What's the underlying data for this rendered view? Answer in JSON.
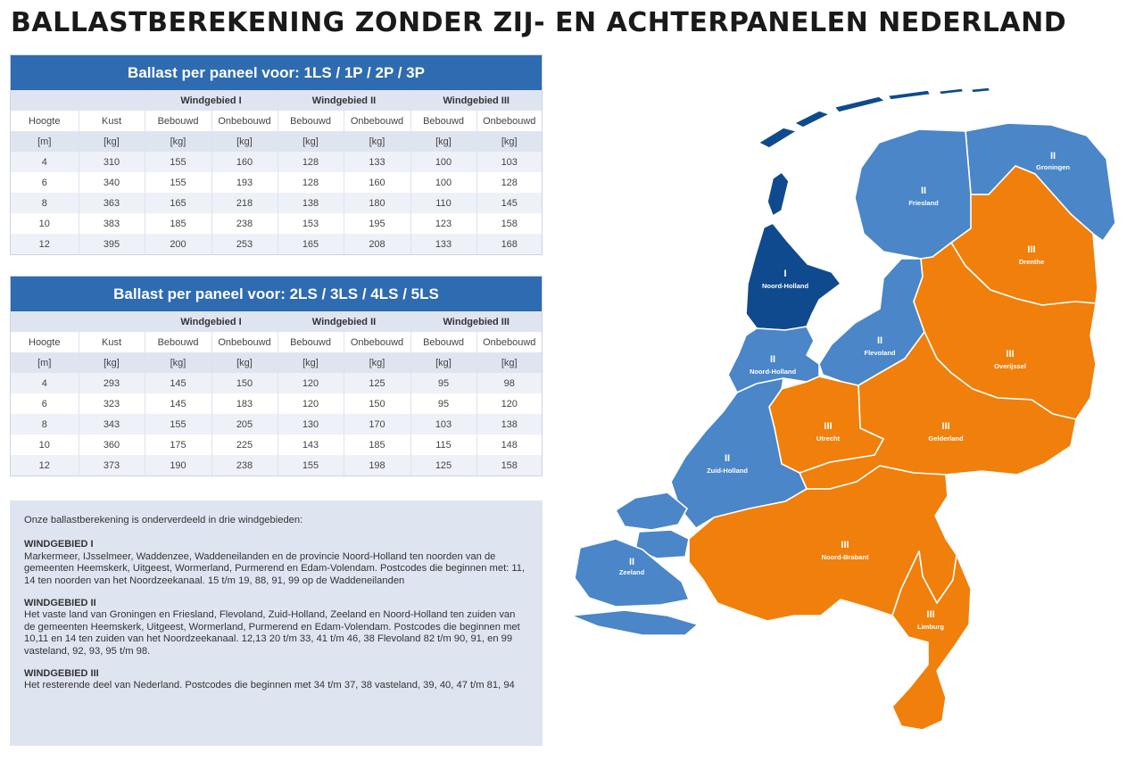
{
  "title": "BALLASTBEREKENING ZONDER ZIJ- EN ACHTERPANELEN NEDERLAND",
  "colors": {
    "zone1": "#0f4a8e",
    "zone2": "#4a86c8",
    "zone3": "#f07f0b",
    "header": "#2e6bb0",
    "tint": "#dfe4f1"
  },
  "tables": [
    {
      "title": "Ballast per paneel voor: 1LS / 1P / 2P / 3P",
      "zones": [
        "Windgebied I",
        "Windgebied II",
        "Windgebied III"
      ],
      "headers": [
        "Hoogte",
        "Kust",
        "Bebouwd",
        "Onbebouwd",
        "Bebouwd",
        "Onbebouwd",
        "Bebouwd",
        "Onbebouwd"
      ],
      "units": [
        "[m]",
        "[kg]",
        "[kg]",
        "[kg]",
        "[kg]",
        "[kg]",
        "[kg]",
        "[kg]"
      ],
      "rows": [
        [
          "4",
          "310",
          "155",
          "160",
          "128",
          "133",
          "100",
          "103"
        ],
        [
          "6",
          "340",
          "155",
          "193",
          "128",
          "160",
          "100",
          "128"
        ],
        [
          "8",
          "363",
          "165",
          "218",
          "138",
          "180",
          "110",
          "145"
        ],
        [
          "10",
          "383",
          "185",
          "238",
          "153",
          "195",
          "123",
          "158"
        ],
        [
          "12",
          "395",
          "200",
          "253",
          "165",
          "208",
          "133",
          "168"
        ]
      ]
    },
    {
      "title": "Ballast per paneel voor: 2LS / 3LS / 4LS / 5LS",
      "zones": [
        "Windgebied I",
        "Windgebied II",
        "Windgebied III"
      ],
      "headers": [
        "Hoogte",
        "Kust",
        "Bebouwd",
        "Onbebouwd",
        "Bebouwd",
        "Onbebouwd",
        "Bebouwd",
        "Onbebouwd"
      ],
      "units": [
        "[m]",
        "[kg]",
        "[kg]",
        "[kg]",
        "[kg]",
        "[kg]",
        "[kg]",
        "[kg]"
      ],
      "rows": [
        [
          "4",
          "293",
          "145",
          "150",
          "120",
          "125",
          "95",
          "98"
        ],
        [
          "6",
          "323",
          "145",
          "183",
          "120",
          "150",
          "95",
          "120"
        ],
        [
          "8",
          "343",
          "155",
          "205",
          "130",
          "170",
          "103",
          "138"
        ],
        [
          "10",
          "360",
          "175",
          "225",
          "143",
          "185",
          "115",
          "148"
        ],
        [
          "12",
          "373",
          "190",
          "238",
          "155",
          "198",
          "125",
          "158"
        ]
      ]
    }
  ],
  "info": {
    "intro": "Onze ballastberekening is onderverdeeld in drie windgebieden:",
    "zone1_head": "WINDGEBIED I",
    "zone1_text": "Markermeer, IJsselmeer, Waddenzee, Waddeneilanden en de provincie Noord-Holland ten noorden van de gemeenten Heemskerk, Uitgeest, Wormerland, Purmerend en Edam-Volendam. Postcodes die beginnen met: 11, 14 ten noorden van het Noordzeekanaal. 15 t/m 19, 88, 91, 99 op de Waddeneilanden",
    "zone2_head": "WINDGEBIED II",
    "zone2_text": "Het vaste land van Groningen en Friesland, Flevoland, Zuid-Holland, Zeeland en Noord-Holland  ten zuiden van de gemeenten Heemskerk, Uitgeest, Wormerland, Purmerend en Edam-Volendam. Postcodes die beginnen met 10,11 en 14 ten zuiden van het Noordzeekanaal. 12,13 20 t/m 33, 41 t/m 46, 38 Flevoland 82 t/m 90, 91, en 99 vasteland, 92, 93, 95 t/m 98.",
    "zone3_head": "WINDGEBIED III",
    "zone3_text": "Het resterende deel van Nederland. Postcodes die beginnen met 34 t/m 37, 38 vasteland, 39, 40, 47 t/m 81, 94"
  },
  "map": {
    "regions": [
      {
        "roman": "II",
        "name": "Groningen",
        "zone": 2
      },
      {
        "roman": "II",
        "name": "Friesland",
        "zone": 2
      },
      {
        "roman": "III",
        "name": "Drenthe",
        "zone": 3
      },
      {
        "roman": "I",
        "name": "Noord-Holland",
        "zone": 1
      },
      {
        "roman": "II",
        "name": "Flevoland",
        "zone": 2
      },
      {
        "roman": "III",
        "name": "Overijssel",
        "zone": 3
      },
      {
        "roman": "II",
        "name": "Noord-Holland",
        "zone": 2
      },
      {
        "roman": "III",
        "name": "Utrecht",
        "zone": 3
      },
      {
        "roman": "III",
        "name": "Gelderland",
        "zone": 3
      },
      {
        "roman": "II",
        "name": "Zuid-Holland",
        "zone": 2
      },
      {
        "roman": "II",
        "name": "Zeeland",
        "zone": 2
      },
      {
        "roman": "III",
        "name": "Noord-Brabant",
        "zone": 3
      },
      {
        "roman": "III",
        "name": "Limburg",
        "zone": 3
      }
    ]
  }
}
